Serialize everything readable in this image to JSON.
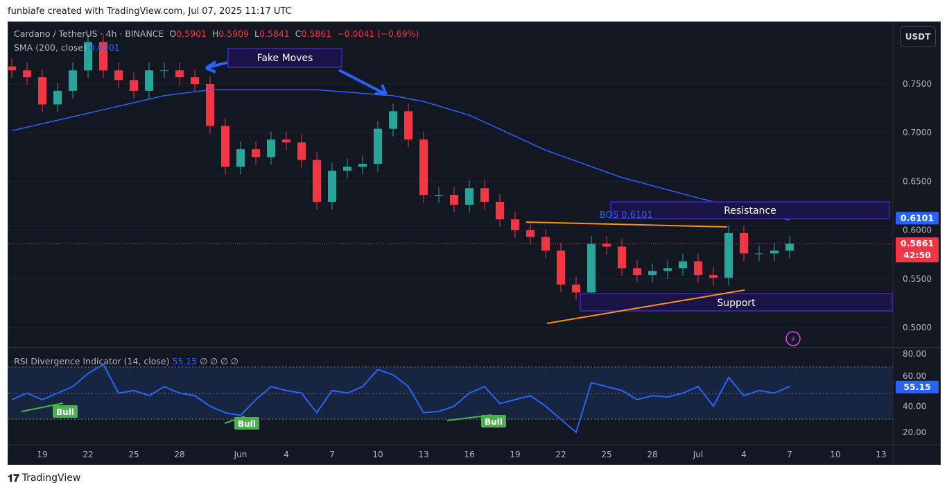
{
  "credit": "funbiafe created with TradingView.com, Jul 07, 2025 11:17 UTC",
  "legend": {
    "symbol": "Cardano / TetherUS · 4h · BINANCE",
    "o_label": "O",
    "o": "0.5901",
    "h_label": "H",
    "h": "0.5909",
    "l_label": "L",
    "l": "0.5841",
    "c_label": "C",
    "c": "0.5861",
    "change": "−0.0041 (−0.69%)",
    "sma_label": "SMA (200, close)",
    "sma_value": "0.6101",
    "rsi_label": "RSI Divergence Indicator (14, close)",
    "rsi_value": "55.15",
    "rsi_extra": "∅ ∅ ∅ ∅"
  },
  "currency_button": "USDT",
  "annotations": {
    "fake_moves": "Fake Moves",
    "resistance": "Resistance",
    "support": "Support",
    "bos": "BOS 0.6101",
    "bull": "Bull"
  },
  "price_labels": {
    "sma": "0.6101",
    "last": "0.5861",
    "countdown": "42:50",
    "rsi": "55.15"
  },
  "brand": "TradingView",
  "colors": {
    "up": "#26a69a",
    "down": "#f23645",
    "sma": "#2962ff",
    "rsi": "#2962ff",
    "annotation_box": "#3b1fa8",
    "trendline": "#f7931a",
    "bull": "#4caf50"
  },
  "chart_data": {
    "type": "candlestick",
    "interval": "4h",
    "x_start": "2025-05-17",
    "x_tick_labels": [
      [
        "19",
        2
      ],
      [
        "22",
        5
      ],
      [
        "25",
        8
      ],
      [
        "28",
        11
      ],
      [
        "Jun",
        15
      ],
      [
        "4",
        18
      ],
      [
        "7",
        21
      ],
      [
        "10",
        24
      ],
      [
        "13",
        27
      ],
      [
        "16",
        30
      ],
      [
        "19",
        33
      ],
      [
        "22",
        36
      ],
      [
        "25",
        39
      ],
      [
        "28",
        42
      ],
      [
        "Jul",
        45
      ],
      [
        "4",
        48
      ],
      [
        "7",
        51
      ],
      [
        "10",
        54
      ],
      [
        "13",
        57
      ]
    ],
    "daily_close_approx": [
      0.764,
      0.757,
      0.729,
      0.743,
      0.764,
      0.793,
      0.764,
      0.754,
      0.743,
      0.764,
      0.764,
      0.757,
      0.75,
      0.707,
      0.665,
      0.683,
      0.675,
      0.693,
      0.69,
      0.672,
      0.629,
      0.661,
      0.665,
      0.668,
      0.704,
      0.722,
      0.693,
      0.636,
      0.636,
      0.626,
      0.643,
      0.629,
      0.611,
      0.6,
      0.593,
      0.579,
      0.544,
      0.536,
      0.586,
      0.583,
      0.561,
      0.554,
      0.558,
      0.561,
      0.568,
      0.554,
      0.551,
      0.597,
      0.576,
      0.576,
      0.579,
      0.5861
    ],
    "price_axis": {
      "ticks": [
        "0.7500",
        "0.7000",
        "0.6500",
        "0.6000",
        "0.5500",
        "0.5000"
      ],
      "range": [
        0.49,
        0.815
      ]
    },
    "sma": {
      "name": "SMA (200, close)",
      "points": [
        [
          0,
          0.702
        ],
        [
          5,
          0.72
        ],
        [
          10,
          0.738
        ],
        [
          13,
          0.744
        ],
        [
          20,
          0.744
        ],
        [
          25,
          0.738
        ],
        [
          27,
          0.732
        ],
        [
          30,
          0.718
        ],
        [
          35,
          0.682
        ],
        [
          40,
          0.654
        ],
        [
          45,
          0.633
        ],
        [
          49,
          0.618
        ],
        [
          51,
          0.6101
        ]
      ]
    },
    "rsi": {
      "ticks": [
        "80.00",
        "60.00",
        "40.00",
        "20.00"
      ],
      "bands": [
        30,
        50,
        70
      ],
      "range": [
        15,
        80
      ],
      "values": [
        45,
        50,
        45,
        50,
        55,
        65,
        72,
        50,
        52,
        48,
        55,
        50,
        48,
        40,
        35,
        33,
        45,
        55,
        52,
        50,
        35,
        52,
        50,
        55,
        68,
        64,
        55,
        35,
        36,
        40,
        50,
        55,
        42,
        45,
        48,
        40,
        30,
        20,
        58,
        55,
        52,
        45,
        48,
        47,
        50,
        55,
        40,
        62,
        48,
        52,
        50,
        55.15
      ]
    }
  }
}
